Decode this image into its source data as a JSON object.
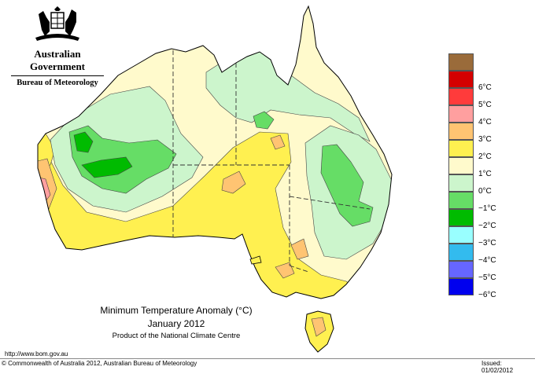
{
  "header": {
    "agency": "Australian Government",
    "bureau": "Bureau of Meteorology"
  },
  "map": {
    "title": "Minimum Temperature Anomaly (°C)",
    "period": "January 2012",
    "product": "Product of the National Climate Centre",
    "region": "Australia",
    "colors": {
      "ocean": "#ffffff",
      "coast": "#000000"
    }
  },
  "legend": {
    "items": [
      {
        "label": "",
        "color": "#9a6b3a"
      },
      {
        "label": "6°C",
        "color": "#d40000"
      },
      {
        "label": "5°C",
        "color": "#ff3b3b"
      },
      {
        "label": "4°C",
        "color": "#ff9f9f"
      },
      {
        "label": "3°C",
        "color": "#ffc472"
      },
      {
        "label": "2°C",
        "color": "#fff050"
      },
      {
        "label": "1°C",
        "color": "#fffacc"
      },
      {
        "label": "0°C",
        "color": "#ccf5cc"
      },
      {
        "label": "−1°C",
        "color": "#66dd66"
      },
      {
        "label": "−2°C",
        "color": "#00bb00"
      },
      {
        "label": "−3°C",
        "color": "#99ffff"
      },
      {
        "label": "−4°C",
        "color": "#33bbee"
      },
      {
        "label": "−5°C",
        "color": "#6666ff"
      },
      {
        "label": "−6°C",
        "color": "#0000ee"
      }
    ]
  },
  "footer": {
    "url": "http://www.bom.gov.au",
    "copyright": "© Commonwealth of Australia 2012, Australian Bureau of Meteorology",
    "issued": "Issued: 01/02/2012"
  }
}
